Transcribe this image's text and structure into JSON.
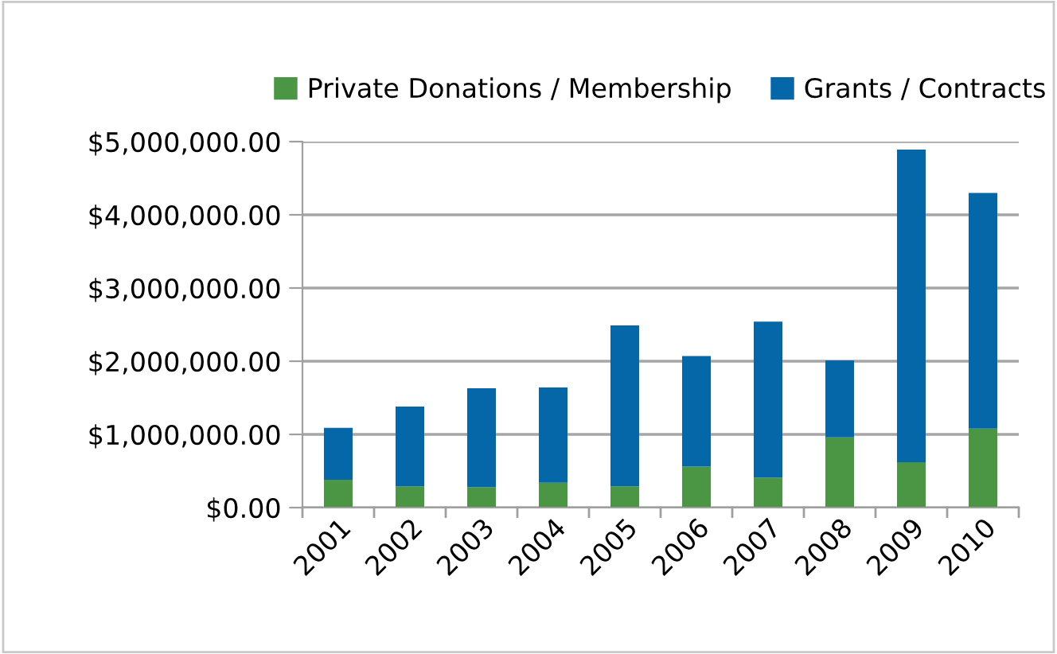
{
  "chart_data": {
    "type": "bar",
    "stacked": true,
    "categories": [
      "2001",
      "2002",
      "2003",
      "2004",
      "2005",
      "2006",
      "2007",
      "2008",
      "2009",
      "2010"
    ],
    "series": [
      {
        "name": "Private Donations / Membership",
        "color": "#4a9645",
        "values": [
          380000,
          290000,
          280000,
          340000,
          290000,
          560000,
          410000,
          960000,
          620000,
          1080000
        ]
      },
      {
        "name": "Grants / Contracts",
        "color": "#0566a8",
        "values": [
          710000,
          1090000,
          1350000,
          1300000,
          2200000,
          1510000,
          2130000,
          1050000,
          4270000,
          3220000
        ]
      }
    ],
    "ylim": [
      0,
      5000000
    ],
    "yticks": [
      {
        "value": 0,
        "label": "$0.00"
      },
      {
        "value": 1000000,
        "label": "$1,000,000.00"
      },
      {
        "value": 2000000,
        "label": "$2,000,000.00"
      },
      {
        "value": 3000000,
        "label": "$3,000,000.00"
      },
      {
        "value": 4000000,
        "label": "$4,000,000.00"
      },
      {
        "value": 5000000,
        "label": "$5,000,000.00"
      }
    ],
    "grid": "y",
    "legend": "top"
  }
}
